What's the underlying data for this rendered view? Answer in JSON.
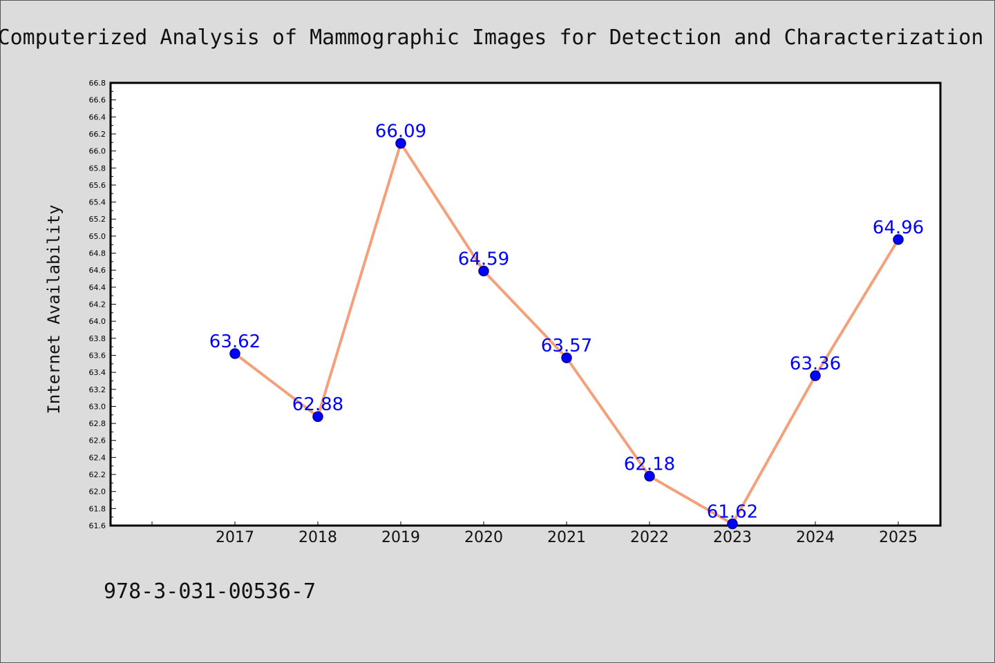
{
  "chart_data": {
    "type": "line",
    "title": "Computerized Analysis of Mammographic Images for Detection and Characterization",
    "xlabel": "",
    "ylabel": "Internet Availability",
    "categories": [
      "2017",
      "2018",
      "2019",
      "2020",
      "2021",
      "2022",
      "2023",
      "2024",
      "2025"
    ],
    "series": [
      {
        "values": [
          63.62,
          62.88,
          66.09,
          64.59,
          63.57,
          62.18,
          61.62,
          63.36,
          64.96
        ]
      }
    ],
    "data_labels": [
      "63.62",
      "62.88",
      "66.09",
      "64.59",
      "63.57",
      "62.18",
      "61.62",
      "63.36",
      "64.96"
    ],
    "ylim": [
      61.6,
      66.8
    ],
    "yticks": [
      "61.6",
      "61.8",
      "62.0",
      "62.2",
      "62.4",
      "62.6",
      "62.8",
      "63.0",
      "63.2",
      "63.4",
      "63.6",
      "63.8",
      "64.0",
      "64.2",
      "64.4",
      "64.6",
      "64.8",
      "65.0",
      "65.2",
      "65.4",
      "65.6",
      "65.8",
      "66.0",
      "66.2",
      "66.4",
      "66.6",
      "66.8"
    ],
    "grid": false,
    "legend": "none",
    "colors": {
      "line": "#f4a07a",
      "marker": "#0000ff",
      "marker_edge": "#00008b",
      "data_label": "#0000ff",
      "plot_background": "#ffffff",
      "figure_background": "#dcdcdc"
    }
  },
  "footer_text": "978-3-031-00536-7"
}
